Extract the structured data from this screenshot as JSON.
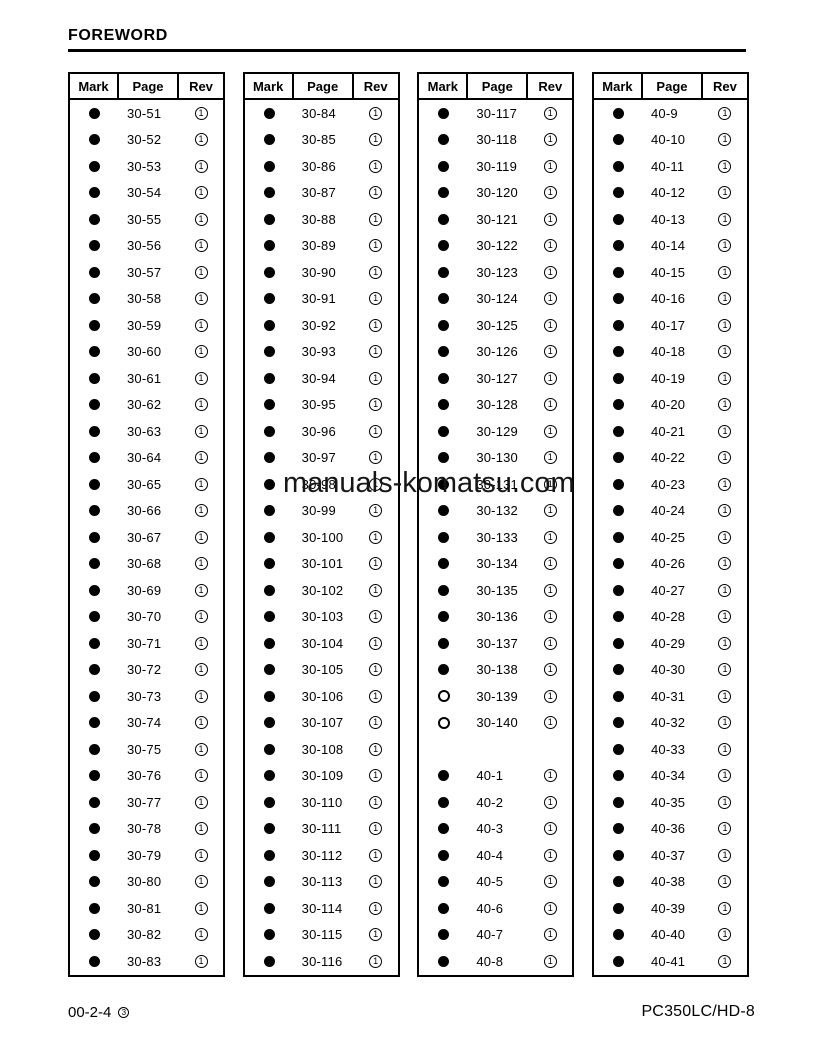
{
  "title": "FOREWORD",
  "watermark": "manuals-komatsu.com",
  "colors": {
    "text": "#000000",
    "background": "#ffffff"
  },
  "table_headers": {
    "mark": "Mark",
    "page": "Page",
    "rev": "Rev"
  },
  "footer": {
    "page_number": "00-2-4",
    "revision_mark": "3",
    "model": "PC350LC/HD-8"
  },
  "tables": [
    {
      "rows": [
        [
          "filled",
          "30-51",
          "1"
        ],
        [
          "filled",
          "30-52",
          "1"
        ],
        [
          "filled",
          "30-53",
          "1"
        ],
        [
          "filled",
          "30-54",
          "1"
        ],
        [
          "filled",
          "30-55",
          "1"
        ],
        [
          "filled",
          "30-56",
          "1"
        ],
        [
          "filled",
          "30-57",
          "1"
        ],
        [
          "filled",
          "30-58",
          "1"
        ],
        [
          "filled",
          "30-59",
          "1"
        ],
        [
          "filled",
          "30-60",
          "1"
        ],
        [
          "filled",
          "30-61",
          "1"
        ],
        [
          "filled",
          "30-62",
          "1"
        ],
        [
          "filled",
          "30-63",
          "1"
        ],
        [
          "filled",
          "30-64",
          "1"
        ],
        [
          "filled",
          "30-65",
          "1"
        ],
        [
          "filled",
          "30-66",
          "1"
        ],
        [
          "filled",
          "30-67",
          "1"
        ],
        [
          "filled",
          "30-68",
          "1"
        ],
        [
          "filled",
          "30-69",
          "1"
        ],
        [
          "filled",
          "30-70",
          "1"
        ],
        [
          "filled",
          "30-71",
          "1"
        ],
        [
          "filled",
          "30-72",
          "1"
        ],
        [
          "filled",
          "30-73",
          "1"
        ],
        [
          "filled",
          "30-74",
          "1"
        ],
        [
          "filled",
          "30-75",
          "1"
        ],
        [
          "filled",
          "30-76",
          "1"
        ],
        [
          "filled",
          "30-77",
          "1"
        ],
        [
          "filled",
          "30-78",
          "1"
        ],
        [
          "filled",
          "30-79",
          "1"
        ],
        [
          "filled",
          "30-80",
          "1"
        ],
        [
          "filled",
          "30-81",
          "1"
        ],
        [
          "filled",
          "30-82",
          "1"
        ],
        [
          "filled",
          "30-83",
          "1"
        ]
      ]
    },
    {
      "rows": [
        [
          "filled",
          "30-84",
          "1"
        ],
        [
          "filled",
          "30-85",
          "1"
        ],
        [
          "filled",
          "30-86",
          "1"
        ],
        [
          "filled",
          "30-87",
          "1"
        ],
        [
          "filled",
          "30-88",
          "1"
        ],
        [
          "filled",
          "30-89",
          "1"
        ],
        [
          "filled",
          "30-90",
          "1"
        ],
        [
          "filled",
          "30-91",
          "1"
        ],
        [
          "filled",
          "30-92",
          "1"
        ],
        [
          "filled",
          "30-93",
          "1"
        ],
        [
          "filled",
          "30-94",
          "1"
        ],
        [
          "filled",
          "30-95",
          "1"
        ],
        [
          "filled",
          "30-96",
          "1"
        ],
        [
          "filled",
          "30-97",
          "1"
        ],
        [
          "filled",
          "30-98",
          "1"
        ],
        [
          "filled",
          "30-99",
          "1"
        ],
        [
          "filled",
          "30-100",
          "1"
        ],
        [
          "filled",
          "30-101",
          "1"
        ],
        [
          "filled",
          "30-102",
          "1"
        ],
        [
          "filled",
          "30-103",
          "1"
        ],
        [
          "filled",
          "30-104",
          "1"
        ],
        [
          "filled",
          "30-105",
          "1"
        ],
        [
          "filled",
          "30-106",
          "1"
        ],
        [
          "filled",
          "30-107",
          "1"
        ],
        [
          "filled",
          "30-108",
          "1"
        ],
        [
          "filled",
          "30-109",
          "1"
        ],
        [
          "filled",
          "30-110",
          "1"
        ],
        [
          "filled",
          "30-111",
          "1"
        ],
        [
          "filled",
          "30-112",
          "1"
        ],
        [
          "filled",
          "30-113",
          "1"
        ],
        [
          "filled",
          "30-114",
          "1"
        ],
        [
          "filled",
          "30-115",
          "1"
        ],
        [
          "filled",
          "30-116",
          "1"
        ]
      ]
    },
    {
      "rows": [
        [
          "filled",
          "30-117",
          "1"
        ],
        [
          "filled",
          "30-118",
          "1"
        ],
        [
          "filled",
          "30-119",
          "1"
        ],
        [
          "filled",
          "30-120",
          "1"
        ],
        [
          "filled",
          "30-121",
          "1"
        ],
        [
          "filled",
          "30-122",
          "1"
        ],
        [
          "filled",
          "30-123",
          "1"
        ],
        [
          "filled",
          "30-124",
          "1"
        ],
        [
          "filled",
          "30-125",
          "1"
        ],
        [
          "filled",
          "30-126",
          "1"
        ],
        [
          "filled",
          "30-127",
          "1"
        ],
        [
          "filled",
          "30-128",
          "1"
        ],
        [
          "filled",
          "30-129",
          "1"
        ],
        [
          "filled",
          "30-130",
          "1"
        ],
        [
          "filled",
          "30-131",
          "1"
        ],
        [
          "filled",
          "30-132",
          "1"
        ],
        [
          "filled",
          "30-133",
          "1"
        ],
        [
          "filled",
          "30-134",
          "1"
        ],
        [
          "filled",
          "30-135",
          "1"
        ],
        [
          "filled",
          "30-136",
          "1"
        ],
        [
          "filled",
          "30-137",
          "1"
        ],
        [
          "filled",
          "30-138",
          "1"
        ],
        [
          "open",
          "30-139",
          "1"
        ],
        [
          "open",
          "30-140",
          "1"
        ],
        [
          "spacer",
          "",
          ""
        ],
        [
          "filled",
          "40-1",
          "1"
        ],
        [
          "filled",
          "40-2",
          "1"
        ],
        [
          "filled",
          "40-3",
          "1"
        ],
        [
          "filled",
          "40-4",
          "1"
        ],
        [
          "filled",
          "40-5",
          "1"
        ],
        [
          "filled",
          "40-6",
          "1"
        ],
        [
          "filled",
          "40-7",
          "1"
        ],
        [
          "filled",
          "40-8",
          "1"
        ]
      ]
    },
    {
      "rows": [
        [
          "filled",
          "40-9",
          "1"
        ],
        [
          "filled",
          "40-10",
          "1"
        ],
        [
          "filled",
          "40-11",
          "1"
        ],
        [
          "filled",
          "40-12",
          "1"
        ],
        [
          "filled",
          "40-13",
          "1"
        ],
        [
          "filled",
          "40-14",
          "1"
        ],
        [
          "filled",
          "40-15",
          "1"
        ],
        [
          "filled",
          "40-16",
          "1"
        ],
        [
          "filled",
          "40-17",
          "1"
        ],
        [
          "filled",
          "40-18",
          "1"
        ],
        [
          "filled",
          "40-19",
          "1"
        ],
        [
          "filled",
          "40-20",
          "1"
        ],
        [
          "filled",
          "40-21",
          "1"
        ],
        [
          "filled",
          "40-22",
          "1"
        ],
        [
          "filled",
          "40-23",
          "1"
        ],
        [
          "filled",
          "40-24",
          "1"
        ],
        [
          "filled",
          "40-25",
          "1"
        ],
        [
          "filled",
          "40-26",
          "1"
        ],
        [
          "filled",
          "40-27",
          "1"
        ],
        [
          "filled",
          "40-28",
          "1"
        ],
        [
          "filled",
          "40-29",
          "1"
        ],
        [
          "filled",
          "40-30",
          "1"
        ],
        [
          "filled",
          "40-31",
          "1"
        ],
        [
          "filled",
          "40-32",
          "1"
        ],
        [
          "filled",
          "40-33",
          "1"
        ],
        [
          "filled",
          "40-34",
          "1"
        ],
        [
          "filled",
          "40-35",
          "1"
        ],
        [
          "filled",
          "40-36",
          "1"
        ],
        [
          "filled",
          "40-37",
          "1"
        ],
        [
          "filled",
          "40-38",
          "1"
        ],
        [
          "filled",
          "40-39",
          "1"
        ],
        [
          "filled",
          "40-40",
          "1"
        ],
        [
          "filled",
          "40-41",
          "1"
        ]
      ]
    }
  ]
}
